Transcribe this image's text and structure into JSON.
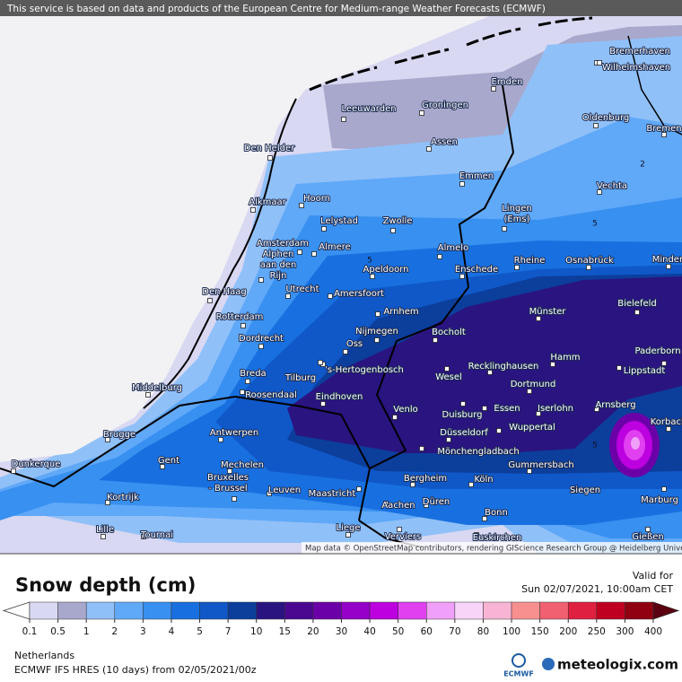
{
  "banner": "This service is based on data and products of the European Centre for Medium-range Weather Forecasts (ECMWF)",
  "attribution": "Map data © OpenStreetMap contributors, rendering GIScience Research Group @ Heidelberg University",
  "cities": [
    [
      "Bremerhaven"
    ],
    [
      "Wilhelmshaven"
    ],
    [
      "Emden"
    ],
    [
      "Leeuwarden"
    ],
    [
      "Groningen"
    ],
    [
      "Oldenburg"
    ],
    [
      "Bremen"
    ],
    [
      "Den Helder"
    ],
    [
      "Assen"
    ],
    [
      "Emmen"
    ],
    [
      "Vechta"
    ],
    [
      "Alkmaar"
    ],
    [
      "Hoorn"
    ],
    [
      "Lelystad"
    ],
    [
      "Zwolle"
    ],
    [
      "Lingen",
      "(Ems)"
    ],
    [
      "Amsterdam"
    ],
    [
      "Almere"
    ],
    [
      "Almelo"
    ],
    [
      "Rheine"
    ],
    [
      "Osnabrück"
    ],
    [
      "Minden"
    ],
    [
      "Alphen",
      "aan den",
      "Rijn"
    ],
    [
      "Apeldoorn"
    ],
    [
      "Enschede"
    ],
    [
      "Den Haag"
    ],
    [
      "Utrecht"
    ],
    [
      "Amersfoort"
    ],
    [
      "Bielefeld"
    ],
    [
      "Münster"
    ],
    [
      "Arnhem"
    ],
    [
      "Rotterdam"
    ],
    [
      "Nijmegen"
    ],
    [
      "Bocholt"
    ],
    [
      "Dordrecht"
    ],
    [
      "Oss"
    ],
    [
      "Paderborn"
    ],
    [
      "Hamm"
    ],
    [
      "Recklinghausen"
    ],
    [
      "Lippstadt"
    ],
    [
      "Breda"
    ],
    [
      "Tilburg"
    ],
    [
      "'s-Hertogenbosch"
    ],
    [
      "Wesel"
    ],
    [
      "Dortmund"
    ],
    [
      "Middelburg"
    ],
    [
      "Roosendaal"
    ],
    [
      "Eindhoven"
    ],
    [
      "Arnsberg"
    ],
    [
      "Iserlohn"
    ],
    [
      "Venlo"
    ],
    [
      "Duisburg"
    ],
    [
      "Essen"
    ],
    [
      "Korbach"
    ],
    [
      "Wuppertal"
    ],
    [
      "Brugge"
    ],
    [
      "Antwerpen"
    ],
    [
      "Düsseldorf"
    ],
    [
      "Mönchengladbach"
    ],
    [
      "Gent"
    ],
    [
      "Dunkerque"
    ],
    [
      "Mechelen"
    ],
    [
      "Gummersbach"
    ],
    [
      "Bruxelles",
      "- Brussel"
    ],
    [
      "Bergheim"
    ],
    [
      "Köln"
    ],
    [
      "Leuven"
    ],
    [
      "Maastricht"
    ],
    [
      "Siegen"
    ],
    [
      "Kortrijk"
    ],
    [
      "Düren"
    ],
    [
      "Marburg"
    ],
    [
      "Aachen"
    ],
    [
      "Bonn"
    ],
    [
      "Lille"
    ],
    [
      "Liege"
    ],
    [
      "Tournai"
    ],
    [
      "Verviers"
    ],
    [
      "Euskirchen"
    ],
    [
      "Gießen"
    ]
  ],
  "contour_labels": [
    "2",
    "5",
    "5",
    "5"
  ],
  "legend": {
    "title": "Snow depth (cm)",
    "labels": [
      0.1,
      0.5,
      1,
      2,
      3,
      4,
      5,
      7,
      10,
      15,
      20,
      30,
      40,
      50,
      60,
      70,
      80,
      100,
      150,
      200,
      250,
      300,
      400
    ],
    "colors": [
      "#d8d8f2",
      "#a8a8cc",
      "#90c0f8",
      "#60a8f8",
      "#3890f0",
      "#1870e0",
      "#1058c8",
      "#0c3e9c",
      "#2a1480",
      "#4a0890",
      "#6c00a8",
      "#9400c8",
      "#bc00e0",
      "#e040f0",
      "#f0a0f8",
      "#f8d4f8",
      "#f8b4d4",
      "#f89090",
      "#f06070",
      "#e02040",
      "#c00020",
      "#900010"
    ],
    "under_color": "#ffffff",
    "over_color": "#5a0010"
  },
  "valid_label": "Valid for",
  "valid_time": "Sun 02/07/2021, 10:00am CET",
  "region": "Netherlands",
  "model": "ECMWF IFS HRES (10 days) from 02/05/2021/00z",
  "logo_ecmwf": "ECMWF",
  "logo_site": "meteologix.com"
}
